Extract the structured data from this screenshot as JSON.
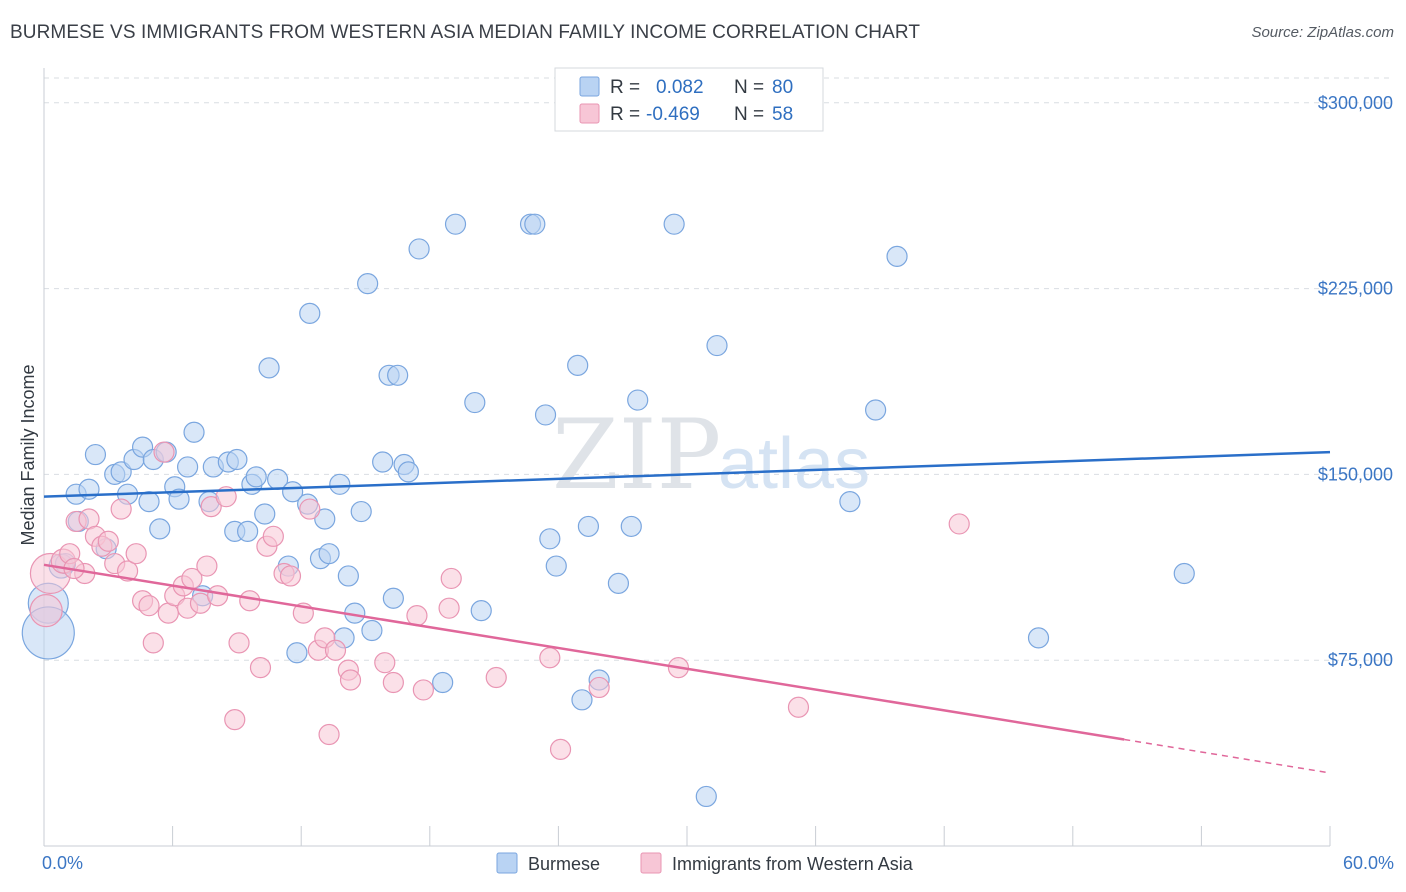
{
  "title": "BURMESE VS IMMIGRANTS FROM WESTERN ASIA MEDIAN FAMILY INCOME CORRELATION CHART",
  "source": "Source: ZipAtlas.com",
  "watermark": {
    "zip": "ZIP",
    "atlas": "atlas"
  },
  "colors": {
    "blue_fill": "#b9d3f3",
    "blue_stroke": "#7aa6df",
    "blue_line": "#2a6fc9",
    "pink_fill": "#f7c6d6",
    "pink_stroke": "#e995b3",
    "pink_line": "#e0679a",
    "grid": "#d9dde2",
    "tick_label": "#3b76c4"
  },
  "legend": {
    "rows": [
      {
        "r_label": "R =",
        "r_value": "0.082",
        "n_label": "N =",
        "n_value": "80"
      },
      {
        "r_label": "R =",
        "r_value": "-0.469",
        "n_label": "N =",
        "n_value": "58"
      }
    ]
  },
  "chart_data": {
    "type": "scatter",
    "title": "BURMESE VS IMMIGRANTS FROM WESTERN ASIA MEDIAN FAMILY INCOME CORRELATION CHART",
    "xlabel": "",
    "ylabel": "Median Family Income",
    "xlim": [
      0,
      60
    ],
    "ylim": [
      0,
      310000
    ],
    "x_tick_labels": [
      "0.0%",
      "60.0%"
    ],
    "y_tick_values": [
      75000,
      150000,
      225000,
      300000
    ],
    "y_tick_labels": [
      "$75,000",
      "$150,000",
      "$225,000",
      "$300,000"
    ],
    "grid": true,
    "legend_position": "top-center",
    "series": [
      {
        "name": "Burmese",
        "r": 0.082,
        "n": 80,
        "trend": {
          "x": [
            0,
            60
          ],
          "y": [
            141000,
            159000
          ]
        },
        "points": [
          [
            0.2,
            98000,
            20
          ],
          [
            0.2,
            86000,
            26
          ],
          [
            0.8,
            113000,
            12
          ],
          [
            1.5,
            142000,
            10
          ],
          [
            1.6,
            131000,
            10
          ],
          [
            2.1,
            144000,
            10
          ],
          [
            2.4,
            158000,
            10
          ],
          [
            2.9,
            120000,
            10
          ],
          [
            3.3,
            150000,
            10
          ],
          [
            3.6,
            151000,
            10
          ],
          [
            3.9,
            142000,
            10
          ],
          [
            4.2,
            156000,
            10
          ],
          [
            4.6,
            161000,
            10
          ],
          [
            4.9,
            139000,
            10
          ],
          [
            5.1,
            156000,
            10
          ],
          [
            5.4,
            128000,
            10
          ],
          [
            5.7,
            159000,
            10
          ],
          [
            6.1,
            145000,
            10
          ],
          [
            6.3,
            140000,
            10
          ],
          [
            7.0,
            167000,
            10
          ],
          [
            6.7,
            153000,
            10
          ],
          [
            7.4,
            101000,
            10
          ],
          [
            7.7,
            139000,
            10
          ],
          [
            7.9,
            153000,
            10
          ],
          [
            8.6,
            155000,
            10
          ],
          [
            8.9,
            127000,
            10
          ],
          [
            9.0,
            156000,
            10
          ],
          [
            9.5,
            127000,
            10
          ],
          [
            9.7,
            146000,
            10
          ],
          [
            9.9,
            149000,
            10
          ],
          [
            10.3,
            134000,
            10
          ],
          [
            10.5,
            193000,
            10
          ],
          [
            10.9,
            148000,
            10
          ],
          [
            11.4,
            113000,
            10
          ],
          [
            11.6,
            143000,
            10
          ],
          [
            11.8,
            78000,
            10
          ],
          [
            12.3,
            138000,
            10
          ],
          [
            12.4,
            215000,
            10
          ],
          [
            12.9,
            116000,
            10
          ],
          [
            13.1,
            132000,
            10
          ],
          [
            13.3,
            118000,
            10
          ],
          [
            13.8,
            146000,
            10
          ],
          [
            14.0,
            84000,
            10
          ],
          [
            14.2,
            109000,
            10
          ],
          [
            14.5,
            94000,
            10
          ],
          [
            14.8,
            135000,
            10
          ],
          [
            15.1,
            227000,
            10
          ],
          [
            15.3,
            87000,
            10
          ],
          [
            15.8,
            155000,
            10
          ],
          [
            16.1,
            190000,
            10
          ],
          [
            16.3,
            100000,
            10
          ],
          [
            16.5,
            190000,
            10
          ],
          [
            16.8,
            154000,
            10
          ],
          [
            17.0,
            151000,
            10
          ],
          [
            17.5,
            241000,
            10
          ],
          [
            18.6,
            66000,
            10
          ],
          [
            19.2,
            251000,
            10
          ],
          [
            20.1,
            179000,
            10
          ],
          [
            20.4,
            95000,
            10
          ],
          [
            22.7,
            251000,
            10
          ],
          [
            22.9,
            251000,
            10
          ],
          [
            23.4,
            174000,
            10
          ],
          [
            23.6,
            124000,
            10
          ],
          [
            23.9,
            113000,
            10
          ],
          [
            24.9,
            194000,
            10
          ],
          [
            25.1,
            59000,
            10
          ],
          [
            25.4,
            129000,
            10
          ],
          [
            25.9,
            67000,
            10
          ],
          [
            26.8,
            106000,
            10
          ],
          [
            27.4,
            129000,
            10
          ],
          [
            27.7,
            180000,
            10
          ],
          [
            29.4,
            251000,
            10
          ],
          [
            30.9,
            20000,
            10
          ],
          [
            31.4,
            202000,
            10
          ],
          [
            37.6,
            139000,
            10
          ],
          [
            38.8,
            176000,
            10
          ],
          [
            39.8,
            238000,
            10
          ],
          [
            46.4,
            84000,
            10
          ],
          [
            53.2,
            110000,
            10
          ],
          [
            1.0,
            114000,
            10
          ]
        ]
      },
      {
        "name": "Immigrants from Western Asia",
        "r": -0.469,
        "n": 58,
        "trend": {
          "x": [
            0,
            50.4
          ],
          "y": [
            113500,
            43000
          ]
        },
        "trend_dashed": {
          "x": [
            50.4,
            60
          ],
          "y": [
            43000,
            29500
          ]
        },
        "points": [
          [
            0.3,
            110000,
            20
          ],
          [
            0.1,
            95000,
            16
          ],
          [
            0.9,
            115000,
            12
          ],
          [
            1.2,
            118000,
            10
          ],
          [
            1.5,
            131000,
            10
          ],
          [
            1.9,
            110000,
            10
          ],
          [
            2.1,
            132000,
            10
          ],
          [
            2.4,
            125000,
            10
          ],
          [
            2.7,
            121000,
            10
          ],
          [
            3.0,
            123000,
            10
          ],
          [
            3.3,
            114000,
            10
          ],
          [
            3.6,
            136000,
            10
          ],
          [
            3.9,
            111000,
            10
          ],
          [
            4.3,
            118000,
            10
          ],
          [
            4.6,
            99000,
            10
          ],
          [
            4.9,
            97000,
            10
          ],
          [
            5.1,
            82000,
            10
          ],
          [
            5.6,
            159000,
            10
          ],
          [
            5.8,
            94000,
            10
          ],
          [
            6.1,
            101000,
            10
          ],
          [
            6.5,
            105000,
            10
          ],
          [
            6.7,
            96000,
            10
          ],
          [
            6.9,
            108000,
            10
          ],
          [
            7.3,
            98000,
            10
          ],
          [
            7.6,
            113000,
            10
          ],
          [
            7.8,
            137000,
            10
          ],
          [
            8.1,
            101000,
            10
          ],
          [
            8.5,
            141000,
            10
          ],
          [
            8.9,
            51000,
            10
          ],
          [
            9.1,
            82000,
            10
          ],
          [
            9.6,
            99000,
            10
          ],
          [
            10.1,
            72000,
            10
          ],
          [
            10.4,
            121000,
            10
          ],
          [
            10.7,
            125000,
            10
          ],
          [
            11.2,
            110000,
            10
          ],
          [
            11.5,
            109000,
            10
          ],
          [
            12.1,
            94000,
            10
          ],
          [
            12.4,
            136000,
            10
          ],
          [
            12.8,
            79000,
            10
          ],
          [
            13.1,
            84000,
            10
          ],
          [
            13.3,
            45000,
            10
          ],
          [
            13.6,
            79000,
            10
          ],
          [
            14.2,
            71000,
            10
          ],
          [
            14.3,
            67000,
            10
          ],
          [
            15.9,
            74000,
            10
          ],
          [
            16.3,
            66000,
            10
          ],
          [
            17.4,
            93000,
            10
          ],
          [
            17.7,
            63000,
            10
          ],
          [
            18.9,
            96000,
            10
          ],
          [
            19.0,
            108000,
            10
          ],
          [
            21.1,
            68000,
            10
          ],
          [
            23.6,
            76000,
            10
          ],
          [
            24.1,
            39000,
            10
          ],
          [
            25.9,
            64000,
            10
          ],
          [
            29.6,
            72000,
            10
          ],
          [
            35.2,
            56000,
            10
          ],
          [
            42.7,
            130000,
            10
          ],
          [
            1.4,
            112000,
            10
          ]
        ]
      }
    ]
  }
}
